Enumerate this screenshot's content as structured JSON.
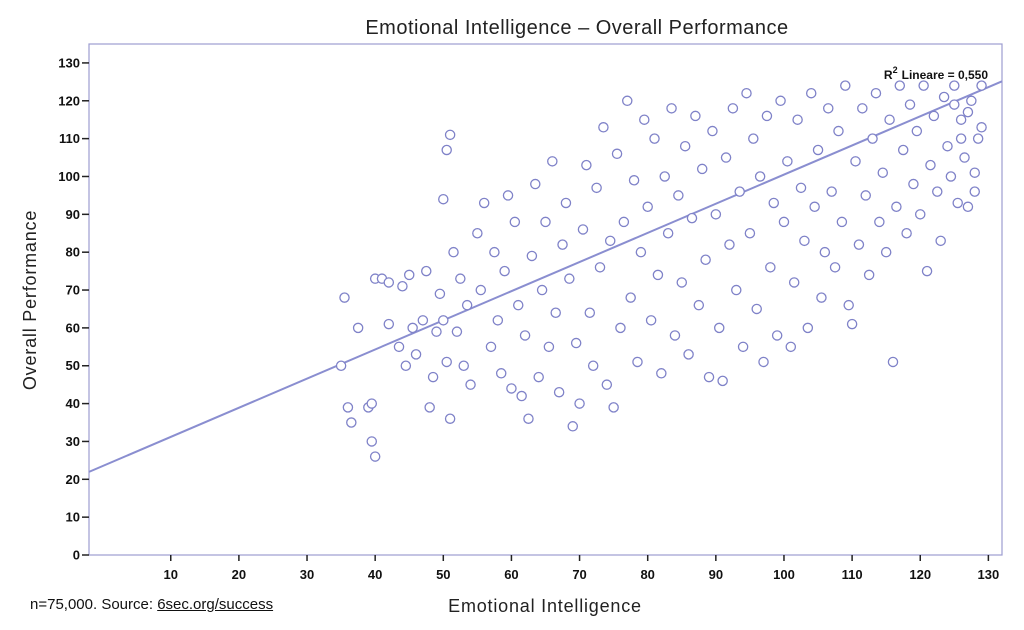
{
  "chart_data": {
    "type": "scatter",
    "title": "Emotional Intelligence – Overall Performance",
    "xlabel": "Emotional Intelligence",
    "ylabel": "Overall Performance",
    "xlim": [
      -2,
      132
    ],
    "ylim": [
      0,
      135
    ],
    "x_ticks": [
      10,
      20,
      30,
      40,
      50,
      60,
      70,
      80,
      90,
      100,
      110,
      120,
      130
    ],
    "y_ticks": [
      0,
      10,
      20,
      30,
      40,
      50,
      60,
      70,
      80,
      90,
      100,
      110,
      120,
      130
    ],
    "grid": false,
    "fit_line": {
      "intercept": 23.5,
      "slope": 0.77,
      "x_range": [
        -2,
        132
      ]
    },
    "annotation": {
      "r_label": "R",
      "superscript": "2",
      "text": "Lineare = 0,550"
    },
    "points": [
      [
        35,
        50
      ],
      [
        35.5,
        68
      ],
      [
        36,
        39
      ],
      [
        36.5,
        35
      ],
      [
        37.5,
        60
      ],
      [
        39,
        39
      ],
      [
        39.5,
        40
      ],
      [
        39.5,
        30
      ],
      [
        40,
        26
      ],
      [
        40,
        73
      ],
      [
        41,
        73
      ],
      [
        42,
        61
      ],
      [
        42,
        72
      ],
      [
        43.5,
        55
      ],
      [
        44,
        71
      ],
      [
        44.5,
        50
      ],
      [
        45,
        74
      ],
      [
        45.5,
        60
      ],
      [
        46,
        53
      ],
      [
        47,
        62
      ],
      [
        47.5,
        75
      ],
      [
        48,
        39
      ],
      [
        48.5,
        47
      ],
      [
        49,
        59
      ],
      [
        49.5,
        69
      ],
      [
        50,
        94
      ],
      [
        50,
        62
      ],
      [
        50.5,
        51
      ],
      [
        50.5,
        107
      ],
      [
        51,
        36
      ],
      [
        51,
        111
      ],
      [
        51.5,
        80
      ],
      [
        52,
        59
      ],
      [
        52.5,
        73
      ],
      [
        53,
        50
      ],
      [
        53.5,
        66
      ],
      [
        54,
        45
      ],
      [
        55,
        85
      ],
      [
        55.5,
        70
      ],
      [
        56,
        93
      ],
      [
        57,
        55
      ],
      [
        57.5,
        80
      ],
      [
        58,
        62
      ],
      [
        58.5,
        48
      ],
      [
        59,
        75
      ],
      [
        59.5,
        95
      ],
      [
        60,
        44
      ],
      [
        60.5,
        88
      ],
      [
        61,
        66
      ],
      [
        61.5,
        42
      ],
      [
        62,
        58
      ],
      [
        62.5,
        36
      ],
      [
        63,
        79
      ],
      [
        63.5,
        98
      ],
      [
        64,
        47
      ],
      [
        64.5,
        70
      ],
      [
        65,
        88
      ],
      [
        65.5,
        55
      ],
      [
        66,
        104
      ],
      [
        66.5,
        64
      ],
      [
        67,
        43
      ],
      [
        67.5,
        82
      ],
      [
        68,
        93
      ],
      [
        68.5,
        73
      ],
      [
        69,
        34
      ],
      [
        69.5,
        56
      ],
      [
        70,
        40
      ],
      [
        70.5,
        86
      ],
      [
        71,
        103
      ],
      [
        71.5,
        64
      ],
      [
        72,
        50
      ],
      [
        72.5,
        97
      ],
      [
        73,
        76
      ],
      [
        73.5,
        113
      ],
      [
        74,
        45
      ],
      [
        74.5,
        83
      ],
      [
        75,
        39
      ],
      [
        75.5,
        106
      ],
      [
        76,
        60
      ],
      [
        76.5,
        88
      ],
      [
        77,
        120
      ],
      [
        77.5,
        68
      ],
      [
        78,
        99
      ],
      [
        78.5,
        51
      ],
      [
        79,
        80
      ],
      [
        79.5,
        115
      ],
      [
        80,
        92
      ],
      [
        80.5,
        62
      ],
      [
        81,
        110
      ],
      [
        81.5,
        74
      ],
      [
        82,
        48
      ],
      [
        82.5,
        100
      ],
      [
        83,
        85
      ],
      [
        83.5,
        118
      ],
      [
        84,
        58
      ],
      [
        84.5,
        95
      ],
      [
        85,
        72
      ],
      [
        85.5,
        108
      ],
      [
        86,
        53
      ],
      [
        86.5,
        89
      ],
      [
        87,
        116
      ],
      [
        87.5,
        66
      ],
      [
        88,
        102
      ],
      [
        88.5,
        78
      ],
      [
        89,
        47
      ],
      [
        89.5,
        112
      ],
      [
        90,
        90
      ],
      [
        90.5,
        60
      ],
      [
        91,
        46
      ],
      [
        91.5,
        105
      ],
      [
        92,
        82
      ],
      [
        92.5,
        118
      ],
      [
        93,
        70
      ],
      [
        93.5,
        96
      ],
      [
        94,
        55
      ],
      [
        94.5,
        122
      ],
      [
        95,
        85
      ],
      [
        95.5,
        110
      ],
      [
        96,
        65
      ],
      [
        96.5,
        100
      ],
      [
        97,
        51
      ],
      [
        97.5,
        116
      ],
      [
        98,
        76
      ],
      [
        98.5,
        93
      ],
      [
        99,
        58
      ],
      [
        99.5,
        120
      ],
      [
        100,
        88
      ],
      [
        100.5,
        104
      ],
      [
        101,
        55
      ],
      [
        101.5,
        72
      ],
      [
        102,
        115
      ],
      [
        102.5,
        97
      ],
      [
        103,
        83
      ],
      [
        103.5,
        60
      ],
      [
        104,
        122
      ],
      [
        104.5,
        92
      ],
      [
        105,
        107
      ],
      [
        105.5,
        68
      ],
      [
        106,
        80
      ],
      [
        106.5,
        118
      ],
      [
        107,
        96
      ],
      [
        107.5,
        76
      ],
      [
        108,
        112
      ],
      [
        108.5,
        88
      ],
      [
        109,
        124
      ],
      [
        109.5,
        66
      ],
      [
        110,
        61
      ],
      [
        110.5,
        104
      ],
      [
        111,
        82
      ],
      [
        111.5,
        118
      ],
      [
        112,
        95
      ],
      [
        112.5,
        74
      ],
      [
        113,
        110
      ],
      [
        113.5,
        122
      ],
      [
        114,
        88
      ],
      [
        114.5,
        101
      ],
      [
        115,
        80
      ],
      [
        115.5,
        115
      ],
      [
        116,
        51
      ],
      [
        116.5,
        92
      ],
      [
        117,
        124
      ],
      [
        117.5,
        107
      ],
      [
        118,
        85
      ],
      [
        118.5,
        119
      ],
      [
        119,
        98
      ],
      [
        119.5,
        112
      ],
      [
        120,
        90
      ],
      [
        120.5,
        124
      ],
      [
        121,
        75
      ],
      [
        121.5,
        103
      ],
      [
        122,
        116
      ],
      [
        122.5,
        96
      ],
      [
        123,
        83
      ],
      [
        123.5,
        121
      ],
      [
        124,
        108
      ],
      [
        124.5,
        100
      ],
      [
        125,
        124
      ],
      [
        125.5,
        93
      ],
      [
        126,
        115
      ],
      [
        126.5,
        105
      ],
      [
        127,
        92
      ],
      [
        127.5,
        120
      ],
      [
        128,
        101
      ],
      [
        128.5,
        110
      ],
      [
        129,
        124
      ],
      [
        129,
        113
      ],
      [
        128,
        96
      ],
      [
        127,
        117
      ],
      [
        126,
        110
      ],
      [
        125,
        119
      ]
    ]
  },
  "footnote": {
    "text": "n=75,000. Source: ",
    "link": "6sec.org/success"
  }
}
